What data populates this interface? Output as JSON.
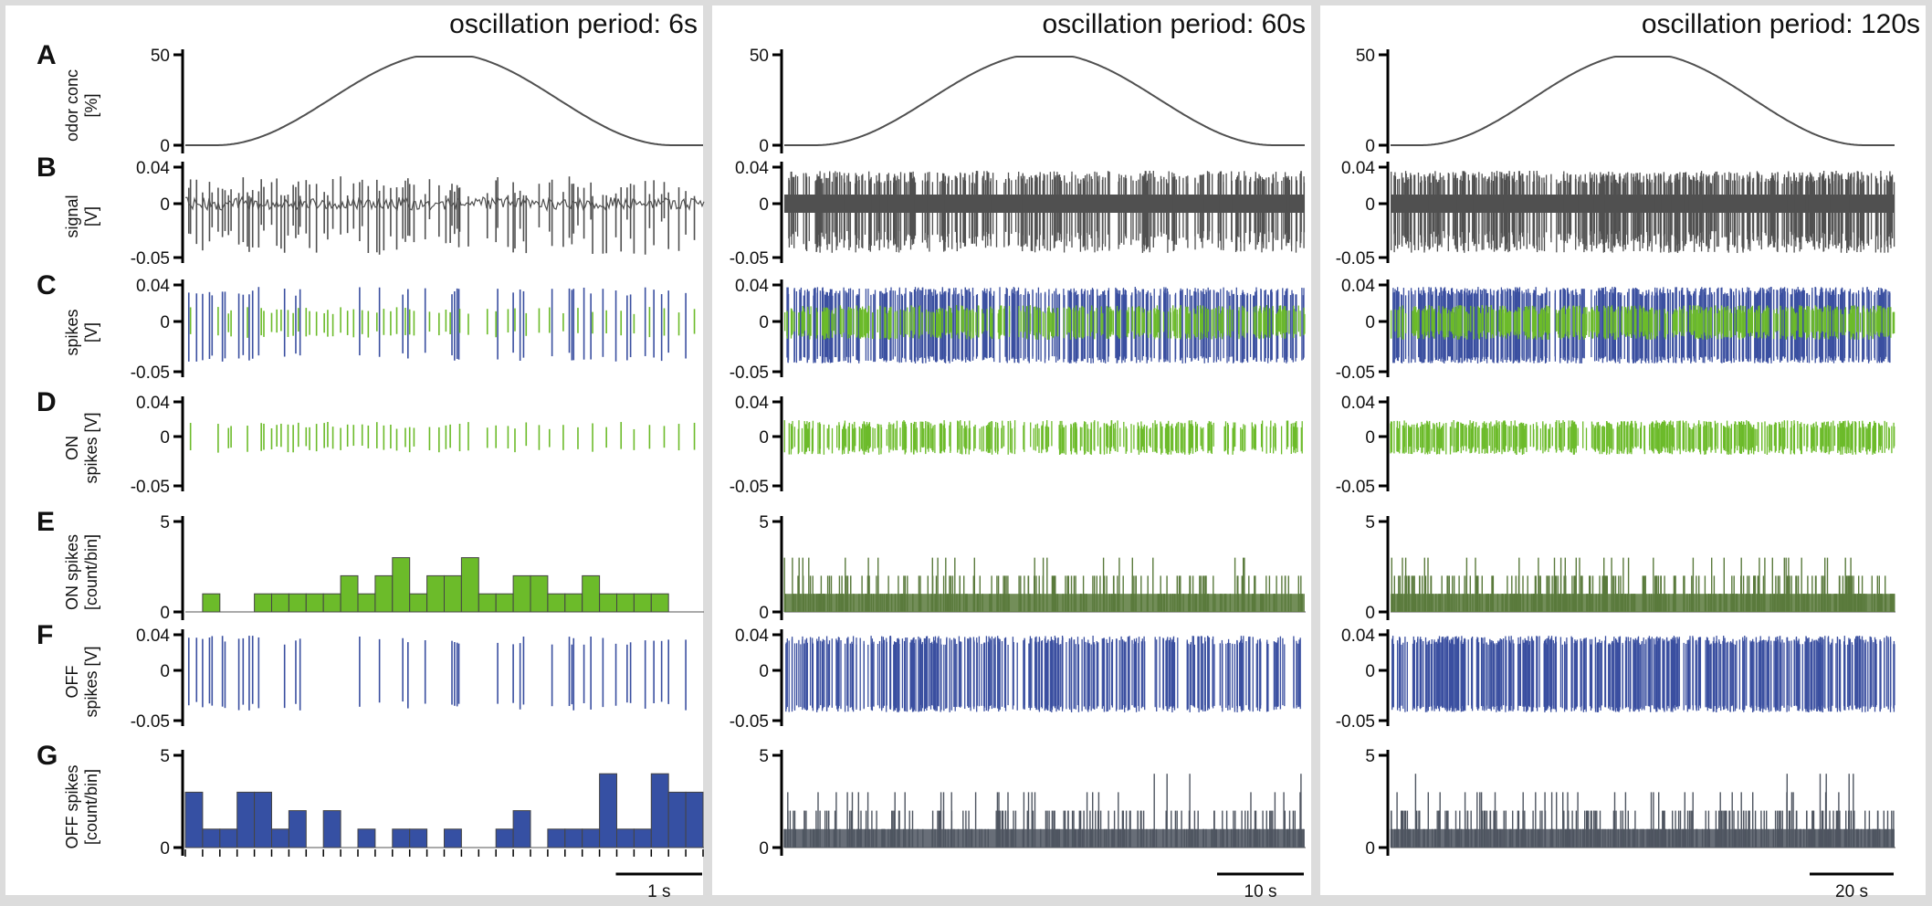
{
  "chart_data": {
    "type": "multi-panel-trace",
    "colors": {
      "trace": "#505050",
      "off_spike": "#3a4fa0",
      "on_spike": "#6cbb2a",
      "hist_on_fill": "#6cbb2a",
      "hist_off_fill": "#3650a3",
      "hist_dense_on": "#5a7a3c",
      "hist_dense_off": "#4e5560",
      "background": "#dcdcdc"
    },
    "rows": [
      {
        "id": "A",
        "letter": "A",
        "ylabel": [
          "odor conc",
          "[%]"
        ],
        "ticks": [
          "50",
          "0"
        ],
        "kind": "sine",
        "ylim": [
          0,
          50
        ]
      },
      {
        "id": "B",
        "letter": "B",
        "ylabel": [
          "signal",
          "[V]"
        ],
        "ticks": [
          "0.04",
          "0",
          "-0.05"
        ],
        "kind": "signal",
        "ylim": [
          -0.05,
          0.04
        ]
      },
      {
        "id": "C",
        "letter": "C",
        "ylabel": [
          "spikes",
          "[V]"
        ],
        "ticks": [
          "0.04",
          "0",
          "-0.05"
        ],
        "kind": "spikes_both",
        "ylim": [
          -0.05,
          0.04
        ]
      },
      {
        "id": "D",
        "letter": "D",
        "ylabel": [
          "ON",
          "spikes [V]"
        ],
        "ticks": [
          "0.04",
          "0",
          "-0.05"
        ],
        "kind": "spikes_on",
        "ylim": [
          -0.05,
          0.04
        ]
      },
      {
        "id": "E",
        "letter": "E",
        "ylabel": [
          "ON spikes",
          "[count/bin]"
        ],
        "ticks": [
          "5",
          "0"
        ],
        "kind": "hist_on",
        "ylim": [
          0,
          5
        ]
      },
      {
        "id": "F",
        "letter": "F",
        "ylabel": [
          "OFF",
          "spikes [V]"
        ],
        "ticks": [
          "0.04",
          "0",
          "-0.05"
        ],
        "kind": "spikes_off",
        "ylim": [
          -0.05,
          0.04
        ]
      },
      {
        "id": "G",
        "letter": "G",
        "ylabel": [
          "OFF spikes",
          "[count/bin]"
        ],
        "ticks": [
          "5",
          "0"
        ],
        "kind": "hist_off",
        "ylim": [
          0,
          5
        ]
      }
    ],
    "columns": [
      {
        "title": "oscillation period: 6s",
        "period_s": 6,
        "scale_bar": "1 s",
        "scale_bar_s": 1,
        "x_ticks": 30,
        "density": "sparse",
        "on_spike_times": [
          0.06,
          0.38,
          0.5,
          0.53,
          0.72,
          0.88,
          0.91,
          1.0,
          1.06,
          1.11,
          1.19,
          1.25,
          1.31,
          1.4,
          1.44,
          1.52,
          1.61,
          1.65,
          1.71,
          1.8,
          1.88,
          1.95,
          2.05,
          2.12,
          2.22,
          2.3,
          2.38,
          2.45,
          2.55,
          2.6,
          2.65,
          2.83,
          2.94,
          3.02,
          3.07,
          3.18,
          3.28,
          3.5,
          3.6,
          3.74,
          3.82,
          3.95,
          4.1,
          4.22,
          4.38,
          4.55,
          4.72,
          4.88,
          5.05,
          5.2,
          5.38,
          5.55,
          5.72,
          5.9
        ],
        "off_spike_times": [
          0.04,
          0.13,
          0.2,
          0.28,
          0.31,
          0.43,
          0.46,
          0.62,
          0.67,
          0.74,
          0.78,
          0.85,
          1.15,
          1.28,
          1.33,
          2.02,
          2.25,
          2.52,
          2.58,
          2.78,
          3.09,
          3.12,
          3.15,
          3.17,
          3.62,
          3.8,
          3.88,
          3.92,
          4.25,
          4.45,
          4.48,
          4.5,
          4.62,
          4.7,
          4.84,
          4.99,
          5.12,
          5.16,
          5.33,
          5.43,
          5.52,
          5.6,
          5.8
        ],
        "on_hist": {
          "bin_s": 0.2,
          "counts": [
            0,
            1,
            0,
            0,
            1,
            1,
            1,
            1,
            1,
            2,
            1,
            2,
            3,
            1,
            2,
            2,
            3,
            1,
            1,
            2,
            2,
            1,
            1,
            2,
            1,
            1,
            1,
            1,
            0,
            0
          ]
        },
        "off_hist": {
          "bin_s": 0.2,
          "counts": [
            3,
            1,
            1,
            3,
            3,
            1,
            2,
            0,
            2,
            0,
            1,
            0,
            1,
            1,
            0,
            1,
            0,
            0,
            1,
            2,
            0,
            1,
            1,
            1,
            4,
            1,
            1,
            4,
            3,
            3
          ]
        }
      },
      {
        "title": "oscillation period: 60s",
        "period_s": 60,
        "scale_bar": "10 s",
        "scale_bar_s": 10,
        "x_ticks": 0,
        "density": "dense",
        "on_hist": {
          "max": 3
        },
        "off_hist": {
          "max": 4
        }
      },
      {
        "title": "oscillation period: 120s",
        "period_s": 120,
        "scale_bar": "20 s",
        "scale_bar_s": 20,
        "x_ticks": 0,
        "density": "very_dense",
        "on_hist": {
          "max": 3
        },
        "off_hist": {
          "max": 4
        }
      }
    ]
  }
}
